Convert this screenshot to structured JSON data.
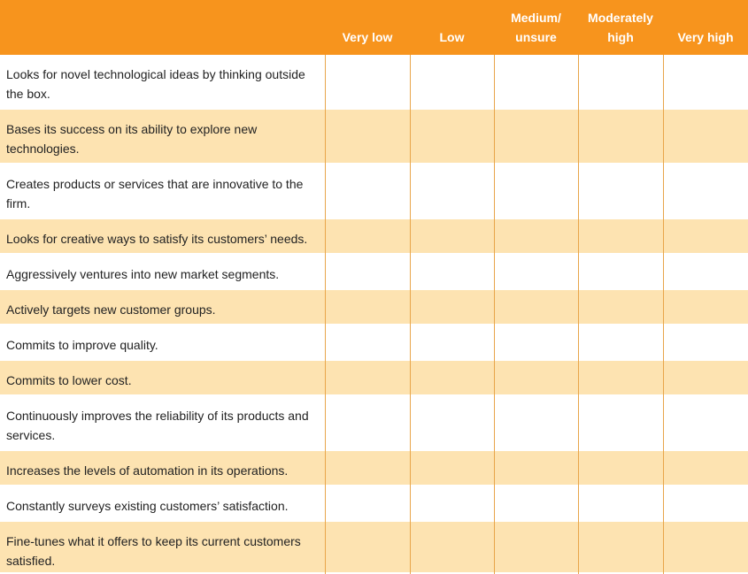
{
  "table": {
    "columns": [
      [
        "Very low"
      ],
      [
        "Low"
      ],
      [
        "Medium/",
        "unsure"
      ],
      [
        "Moderately",
        "high"
      ],
      [
        "Very high"
      ]
    ],
    "rows": [
      "Looks for novel technological ideas by thinking outside the box.",
      "Bases its success on its ability to explore new technologies.",
      "Creates products or services that are innovative to the firm.",
      "Looks for creative ways to satisfy its customers’ needs.",
      "Aggressively ventures into new market segments.",
      "Actively targets new customer groups.",
      "Commits to improve quality.",
      "Commits to lower cost.",
      "Continuously improves the reliability of its products and services.",
      "Increases the levels of automation in its operations.",
      "Constantly surveys existing customers’ satisfaction.",
      "Fine-tunes what it offers to keep its current customers satisfied."
    ]
  }
}
